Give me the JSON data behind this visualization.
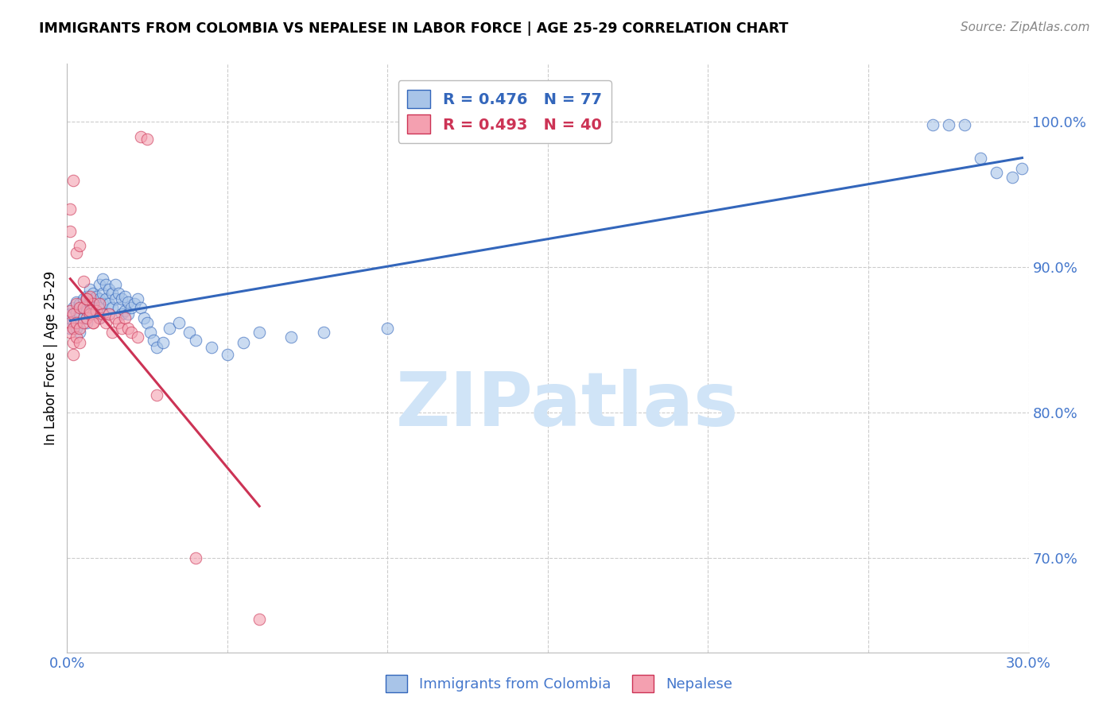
{
  "title": "IMMIGRANTS FROM COLOMBIA VS NEPALESE IN LABOR FORCE | AGE 25-29 CORRELATION CHART",
  "source": "Source: ZipAtlas.com",
  "ylabel": "In Labor Force | Age 25-29",
  "xlim": [
    0.0,
    0.3
  ],
  "ylim": [
    0.635,
    1.04
  ],
  "xticks": [
    0.0,
    0.05,
    0.1,
    0.15,
    0.2,
    0.25,
    0.3
  ],
  "xtick_labels": [
    "0.0%",
    "",
    "",
    "",
    "",
    "",
    "30.0%"
  ],
  "yticks": [
    0.7,
    0.8,
    0.9,
    1.0
  ],
  "ytick_labels": [
    "70.0%",
    "80.0%",
    "90.0%",
    "100.0%"
  ],
  "blue_R": 0.476,
  "blue_N": 77,
  "pink_R": 0.493,
  "pink_N": 40,
  "blue_color": "#A8C4E8",
  "pink_color": "#F4A0B0",
  "blue_line_color": "#3366BB",
  "pink_line_color": "#CC3355",
  "axis_color": "#4477CC",
  "grid_color": "#CCCCCC",
  "watermark": "ZIPatlas",
  "watermark_color": "#D0E4F7",
  "blue_x": [
    0.001,
    0.001,
    0.002,
    0.002,
    0.003,
    0.003,
    0.003,
    0.004,
    0.004,
    0.004,
    0.005,
    0.005,
    0.005,
    0.006,
    0.006,
    0.006,
    0.007,
    0.007,
    0.007,
    0.007,
    0.008,
    0.008,
    0.008,
    0.009,
    0.009,
    0.01,
    0.01,
    0.01,
    0.01,
    0.011,
    0.011,
    0.011,
    0.012,
    0.012,
    0.013,
    0.013,
    0.013,
    0.014,
    0.014,
    0.015,
    0.015,
    0.016,
    0.016,
    0.017,
    0.017,
    0.018,
    0.018,
    0.019,
    0.019,
    0.02,
    0.021,
    0.022,
    0.023,
    0.024,
    0.025,
    0.026,
    0.027,
    0.028,
    0.03,
    0.032,
    0.035,
    0.038,
    0.04,
    0.045,
    0.05,
    0.055,
    0.06,
    0.07,
    0.08,
    0.1,
    0.27,
    0.275,
    0.28,
    0.285,
    0.29,
    0.295,
    0.298
  ],
  "blue_y": [
    0.868,
    0.858,
    0.872,
    0.863,
    0.876,
    0.869,
    0.858,
    0.875,
    0.868,
    0.855,
    0.878,
    0.865,
    0.872,
    0.88,
    0.87,
    0.862,
    0.885,
    0.875,
    0.868,
    0.876,
    0.882,
    0.872,
    0.868,
    0.88,
    0.87,
    0.888,
    0.878,
    0.872,
    0.865,
    0.892,
    0.882,
    0.875,
    0.888,
    0.878,
    0.885,
    0.875,
    0.868,
    0.882,
    0.872,
    0.888,
    0.878,
    0.882,
    0.872,
    0.878,
    0.868,
    0.88,
    0.87,
    0.876,
    0.868,
    0.872,
    0.875,
    0.878,
    0.872,
    0.865,
    0.862,
    0.855,
    0.85,
    0.845,
    0.848,
    0.858,
    0.862,
    0.855,
    0.85,
    0.845,
    0.84,
    0.848,
    0.855,
    0.852,
    0.855,
    0.858,
    0.998,
    0.998,
    0.998,
    0.975,
    0.965,
    0.962,
    0.968
  ],
  "pink_x": [
    0.001,
    0.001,
    0.001,
    0.002,
    0.002,
    0.002,
    0.002,
    0.003,
    0.003,
    0.003,
    0.004,
    0.004,
    0.004,
    0.005,
    0.005,
    0.006,
    0.006,
    0.007,
    0.007,
    0.008,
    0.008,
    0.009,
    0.01,
    0.01,
    0.011,
    0.012,
    0.013,
    0.014,
    0.015,
    0.016,
    0.017,
    0.018,
    0.019,
    0.02,
    0.022,
    0.023,
    0.025,
    0.028,
    0.04,
    0.06
  ],
  "pink_y": [
    0.87,
    0.862,
    0.855,
    0.868,
    0.858,
    0.848,
    0.84,
    0.875,
    0.862,
    0.852,
    0.872,
    0.858,
    0.848,
    0.872,
    0.862,
    0.878,
    0.865,
    0.88,
    0.868,
    0.875,
    0.862,
    0.87,
    0.875,
    0.865,
    0.868,
    0.862,
    0.868,
    0.855,
    0.865,
    0.862,
    0.858,
    0.865,
    0.858,
    0.855,
    0.852,
    0.99,
    0.988,
    0.812,
    0.7,
    0.658
  ],
  "pink_outliers_x": [
    0.001,
    0.001,
    0.002,
    0.003,
    0.004,
    0.005,
    0.006,
    0.007,
    0.008
  ],
  "pink_outliers_y": [
    0.94,
    0.925,
    0.96,
    0.91,
    0.915,
    0.89,
    0.878,
    0.87,
    0.862
  ]
}
